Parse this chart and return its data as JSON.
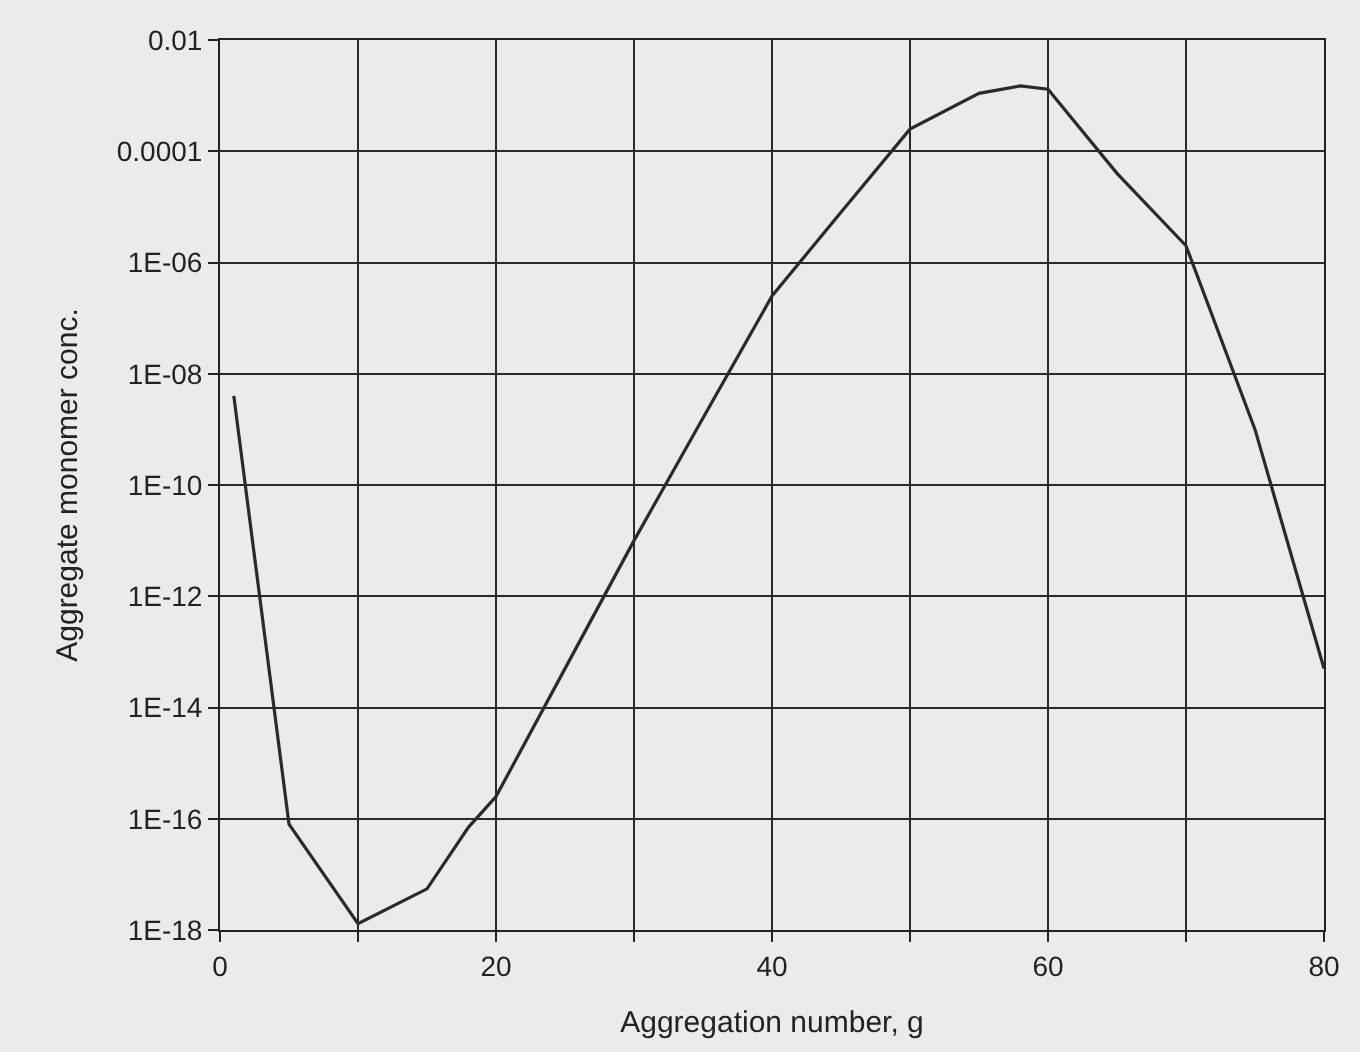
{
  "chart_data": {
    "type": "line",
    "xlabel": "Aggregation number, g",
    "ylabel": "Aggregate monomer conc.",
    "log": "y",
    "grid": true,
    "marker": "none",
    "line_style": "solid",
    "legend": false,
    "x": [
      1,
      5,
      10,
      15,
      18,
      20,
      25,
      30,
      35,
      40,
      45,
      50,
      55,
      58,
      60,
      65,
      70,
      75,
      80
    ],
    "series": [
      {
        "color": "#2a2a2a",
        "values": [
          4e-09,
          8e-17,
          1.3e-18,
          5.5e-18,
          7e-17,
          2.5e-16,
          5e-14,
          1e-11,
          1.6e-09,
          2.5e-07,
          8e-06,
          0.00025,
          0.0011,
          0.0015,
          0.0013,
          4e-05,
          2e-06,
          1e-09,
          5e-14
        ]
      }
    ],
    "xlim": [
      0,
      80
    ],
    "xticks": [
      {
        "value": 0,
        "label": "0"
      },
      {
        "value": 10,
        "label": null
      },
      {
        "value": 20,
        "label": "20"
      },
      {
        "value": 30,
        "label": null
      },
      {
        "value": 40,
        "label": "40"
      },
      {
        "value": 50,
        "label": null
      },
      {
        "value": 60,
        "label": "60"
      },
      {
        "value": 70,
        "label": null
      },
      {
        "value": 80,
        "label": "80"
      }
    ],
    "ylim": [
      1e-18,
      0.01
    ],
    "yticks": [
      {
        "value": 1e-18,
        "label": "1E-18"
      },
      {
        "value": 1e-16,
        "label": "1E-16"
      },
      {
        "value": 1e-14,
        "label": "1E-14"
      },
      {
        "value": 1e-12,
        "label": "1E-12"
      },
      {
        "value": 1e-10,
        "label": "1E-10"
      },
      {
        "value": 1e-08,
        "label": "1E-08"
      },
      {
        "value": 1e-06,
        "label": "1E-06"
      },
      {
        "value": 0.0001,
        "label": "0.0001"
      },
      {
        "value": 0.01,
        "label": "0.01"
      }
    ]
  }
}
